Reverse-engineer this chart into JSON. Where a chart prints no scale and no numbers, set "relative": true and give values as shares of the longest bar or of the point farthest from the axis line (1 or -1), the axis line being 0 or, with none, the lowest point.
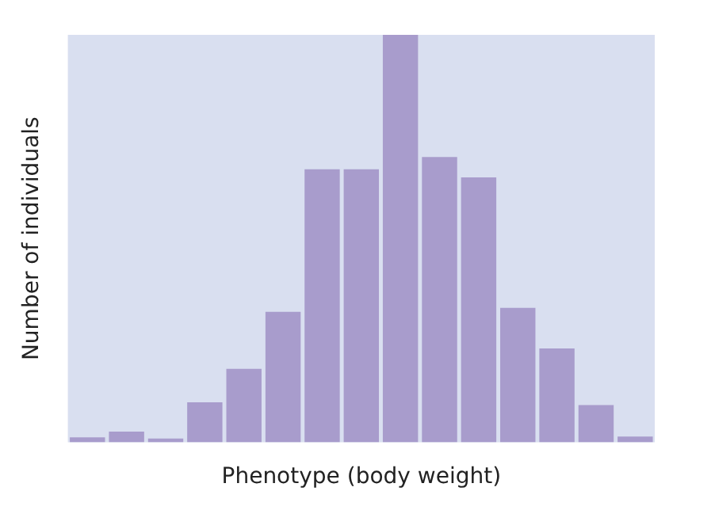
{
  "chart_data": {
    "type": "bar",
    "relative": true,
    "xlabel": "Phenotype (body weight)",
    "ylabel": "Number of individuals",
    "categories": [
      null,
      null,
      null,
      null,
      null,
      null,
      null,
      null,
      null,
      null,
      null,
      null,
      null,
      null,
      null
    ],
    "values": [
      0.012,
      0.026,
      0.009,
      0.098,
      0.18,
      0.32,
      0.67,
      0.67,
      1,
      0.7,
      0.65,
      0.33,
      0.23,
      0.091,
      0.014
    ],
    "color": "#a89ccc",
    "grid": false,
    "legend": false
  }
}
